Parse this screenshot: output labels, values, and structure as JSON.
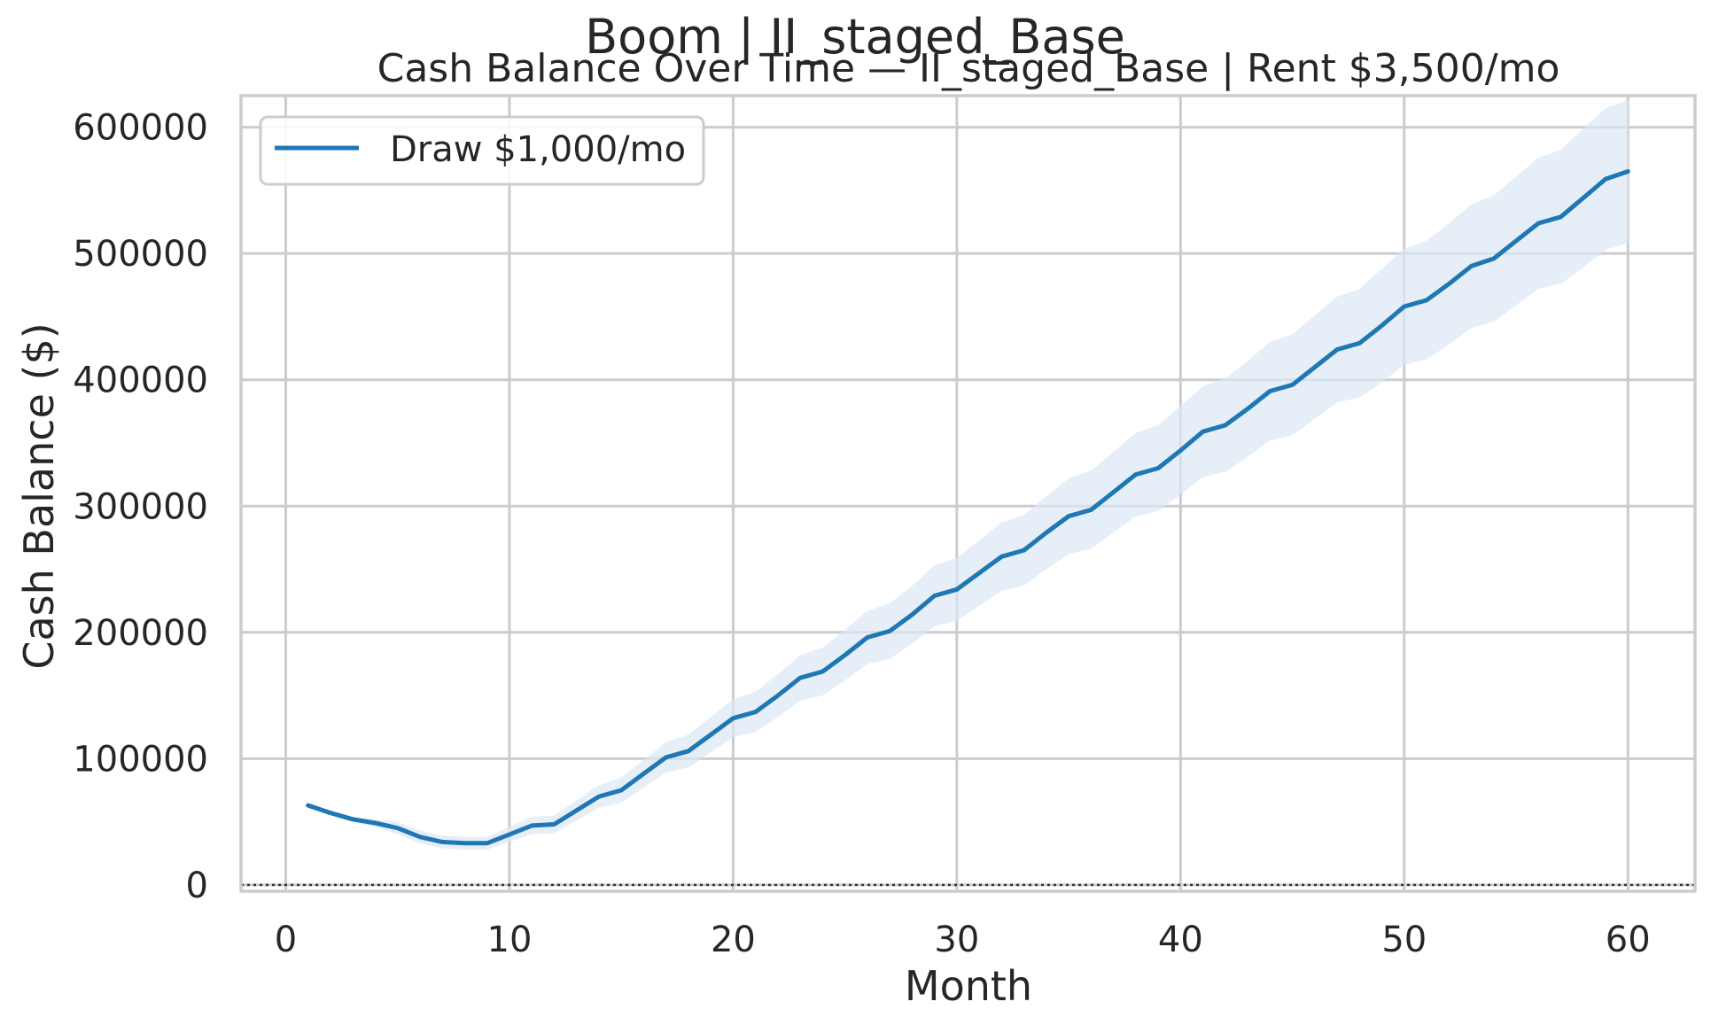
{
  "suptitle": "Boom | II_staged_Base",
  "chart_data": {
    "type": "line",
    "title": "Cash Balance Over Time — II_staged_Base | Rent $3,500/mo",
    "xlabel": "Month",
    "ylabel": "Cash Balance ($)",
    "xlim": [
      -2,
      63
    ],
    "ylim": [
      -5000,
      625000
    ],
    "xticks": [
      0,
      10,
      20,
      30,
      40,
      50,
      60
    ],
    "xtick_labels": [
      "0",
      "10",
      "20",
      "30",
      "40",
      "50",
      "60"
    ],
    "yticks": [
      0,
      100000,
      200000,
      300000,
      400000,
      500000,
      600000
    ],
    "ytick_labels": [
      "0",
      "100000",
      "200000",
      "300000",
      "400000",
      "500000",
      "600000"
    ],
    "grid": true,
    "legend": {
      "position": "upper-left",
      "entries": [
        "Draw $1,000/mo"
      ]
    },
    "reference_line": {
      "y": 0,
      "style": "dotted",
      "color": "#333333"
    },
    "series": [
      {
        "name": "Draw $1,000/mo",
        "color": "#1f77b4",
        "band_color": "#dbe8f5",
        "x": [
          1,
          2,
          3,
          4,
          5,
          6,
          7,
          8,
          9,
          10,
          11,
          12,
          13,
          14,
          15,
          16,
          17,
          18,
          19,
          20,
          21,
          22,
          23,
          24,
          25,
          26,
          27,
          28,
          29,
          30,
          31,
          32,
          33,
          34,
          35,
          36,
          37,
          38,
          39,
          40,
          41,
          42,
          43,
          44,
          45,
          46,
          47,
          48,
          49,
          50,
          51,
          52,
          53,
          54,
          55,
          56,
          57,
          58,
          59,
          60
        ],
        "values": [
          63000,
          57000,
          52000,
          49000,
          45000,
          38000,
          34000,
          33000,
          33000,
          40000,
          47000,
          48000,
          59000,
          70000,
          75000,
          88000,
          101000,
          106000,
          119000,
          132000,
          137000,
          150000,
          164000,
          169000,
          182000,
          196000,
          201000,
          214000,
          229000,
          234000,
          247000,
          260000,
          265000,
          279000,
          292000,
          297000,
          311000,
          325000,
          330000,
          344000,
          359000,
          364000,
          377000,
          391000,
          396000,
          410000,
          424000,
          429000,
          443000,
          458000,
          463000,
          476000,
          490000,
          496000,
          510000,
          524000,
          529000,
          544000,
          559000,
          565000
        ],
        "lower": [
          61000,
          55000,
          50000,
          46000,
          40000,
          33000,
          29000,
          28000,
          28000,
          34000,
          40000,
          41000,
          51000,
          61000,
          65000,
          77000,
          89000,
          93000,
          105000,
          117000,
          121000,
          133000,
          146000,
          150000,
          162000,
          175000,
          179000,
          191000,
          205000,
          209000,
          221000,
          233000,
          237000,
          250000,
          262000,
          266000,
          279000,
          292000,
          296000,
          309000,
          323000,
          327000,
          339000,
          352000,
          356000,
          369000,
          382000,
          386000,
          398000,
          412000,
          416000,
          428000,
          441000,
          446000,
          459000,
          472000,
          476000,
          489000,
          503000,
          508000
        ],
        "upper": [
          65000,
          59000,
          54000,
          52000,
          50000,
          43000,
          39000,
          38000,
          38000,
          46000,
          54000,
          55000,
          67000,
          79000,
          85000,
          99000,
          113000,
          119000,
          133000,
          147000,
          153000,
          167000,
          182000,
          188000,
          202000,
          217000,
          223000,
          237000,
          253000,
          259000,
          273000,
          287000,
          293000,
          308000,
          322000,
          328000,
          343000,
          358000,
          364000,
          379000,
          395000,
          401000,
          415000,
          430000,
          436000,
          451000,
          466000,
          472000,
          488000,
          504000,
          510000,
          524000,
          539000,
          546000,
          561000,
          576000,
          582000,
          599000,
          615000,
          622000
        ]
      }
    ]
  }
}
